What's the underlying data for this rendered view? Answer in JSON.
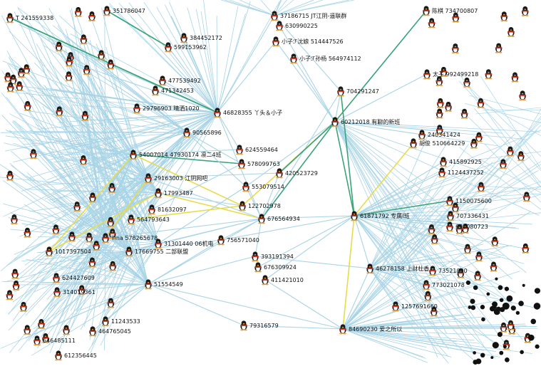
{
  "colors": {
    "edge_blue": "#a8d4e6",
    "edge_green": "#3aa37a",
    "edge_yellow": "#e8dc4a",
    "node_body": "#e8a036",
    "node_head": "#1a1a1a",
    "node_belly": "#ffffff"
  },
  "icon": "qq-penguin-icon",
  "nodes": [
    {
      "id": "n1",
      "label": "46828355 丫头＆小子"
    },
    {
      "id": "n2",
      "label": "90565896"
    },
    {
      "id": "n3",
      "label": "624559464"
    },
    {
      "id": "n4",
      "label": "578099763"
    },
    {
      "id": "n5",
      "label": "420523729"
    },
    {
      "id": "n6",
      "label": "553079514"
    },
    {
      "id": "n7",
      "label": "122702978"
    },
    {
      "id": "n8",
      "label": "676564934"
    },
    {
      "id": "n9",
      "label": "756571040"
    },
    {
      "id": "n10",
      "label": "393191394"
    },
    {
      "id": "n11",
      "label": "676309924"
    },
    {
      "id": "n12",
      "label": "411421010"
    },
    {
      "id": "n13",
      "label": "79316579"
    },
    {
      "id": "n14",
      "label": "51554549"
    },
    {
      "id": "n15",
      "label": "17669755 二部联盟"
    },
    {
      "id": "n16",
      "label": "31301440 06机电"
    },
    {
      "id": "n17",
      "label": "81632097"
    },
    {
      "id": "n18",
      "label": "17993487"
    },
    {
      "id": "n19",
      "label": "29163003 江阴网吧"
    },
    {
      "id": "n20",
      "label": "54007014 47930174 凛二4班"
    },
    {
      "id": "n21",
      "label": "29796903 晴洒1020"
    },
    {
      "id": "n22",
      "label": "471342453"
    },
    {
      "id": "n23",
      "label": "704291247"
    },
    {
      "id": "n24",
      "label": "60212018 有聊的新班"
    },
    {
      "id": "n25",
      "label": "61871792 专属I班"
    },
    {
      "id": "n26",
      "label": "46278158 上财杜香"
    },
    {
      "id": "n27",
      "label": "84690230 爱之所以"
    },
    {
      "id": "n28",
      "label": "小子ℱ沈娘 514447526"
    },
    {
      "id": "n29",
      "label": "小子ℱ孙杨 564974112"
    },
    {
      "id": "n30",
      "label": "37186715 JT江阴-遥联群"
    },
    {
      "id": "n31",
      "label": "630990225"
    },
    {
      "id": "n32",
      "label": "陈棋 734700807"
    },
    {
      "id": "n33",
      "label": "太子 992499218"
    },
    {
      "id": "n34",
      "label": "胡俊 510664229"
    },
    {
      "id": "n35",
      "label": "240341424"
    },
    {
      "id": "n36",
      "label": "415892925"
    },
    {
      "id": "n37",
      "label": "1124437252"
    },
    {
      "id": "n38",
      "label": "1150075600"
    },
    {
      "id": "n39",
      "label": "707336431"
    },
    {
      "id": "n40",
      "label": "690080723"
    },
    {
      "id": "n41",
      "label": "Tina 578265678"
    },
    {
      "id": "n42",
      "label": "564793643"
    },
    {
      "id": "n43",
      "label": "1017397504"
    },
    {
      "id": "n44",
      "label": "624427609"
    },
    {
      "id": "n45",
      "label": "314019361"
    },
    {
      "id": "n46",
      "label": "11243533"
    },
    {
      "id": "n47",
      "label": "464765045"
    },
    {
      "id": "n48",
      "label": "646485111"
    },
    {
      "id": "n49",
      "label": "612356445"
    },
    {
      "id": "n50",
      "label": "T 241559338"
    },
    {
      "id": "n51",
      "label": "351786047"
    },
    {
      "id": "n52",
      "label": "1257691660"
    },
    {
      "id": "n53",
      "label": "773021078"
    },
    {
      "id": "n54",
      "label": "73521000"
    },
    {
      "id": "n55",
      "label": "599153962"
    },
    {
      "id": "n56",
      "label": "384452172"
    },
    {
      "id": "n57",
      "label": "477539492"
    }
  ]
}
